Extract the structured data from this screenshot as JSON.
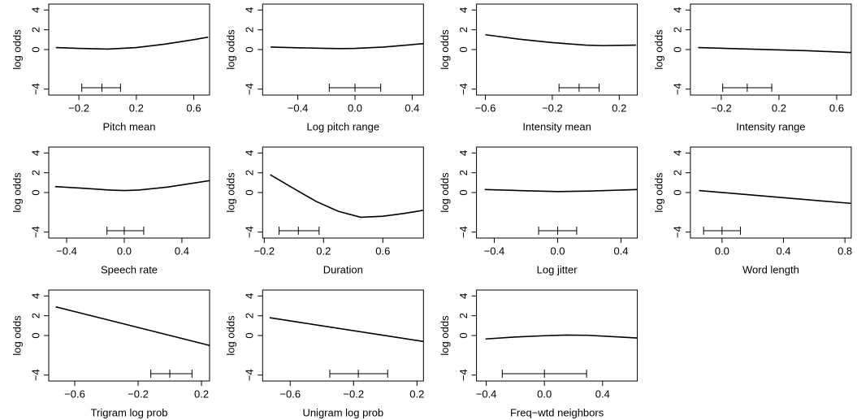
{
  "chart_data": [
    {
      "type": "line",
      "xlabel": "Pitch mean",
      "ylabel": "log odds",
      "color": "#000000",
      "x": [
        -0.36,
        -0.2,
        0,
        0.2,
        0.4,
        0.6,
        0.7
      ],
      "values": [
        0.2,
        0.12,
        0.05,
        0.2,
        0.55,
        1.0,
        1.25
      ],
      "range_marker": [
        -0.18,
        -0.04,
        0.09
      ],
      "xlim": [
        -0.41,
        0.71
      ],
      "ylim": [
        -4.6,
        4.6
      ],
      "xticks": [
        {
          "value": -0.2,
          "label": "−0.2"
        },
        0.2,
        0.6
      ],
      "yticks": [
        {
          "value": -4,
          "label": "−4"
        },
        0,
        2,
        4
      ]
    },
    {
      "type": "line",
      "xlabel": "Log pitch range",
      "ylabel": "log odds",
      "color": "#000000",
      "x": [
        -0.59,
        -0.4,
        -0.2,
        -0.1,
        0,
        0.2,
        0.48
      ],
      "values": [
        0.25,
        0.18,
        0.12,
        0.1,
        0.12,
        0.25,
        0.6
      ],
      "range_marker": [
        -0.18,
        0,
        0.18
      ],
      "xlim": [
        -0.646,
        0.479
      ],
      "ylim": [
        -4.6,
        4.6
      ],
      "xticks": [
        {
          "value": -0.4,
          "label": "−0.4"
        },
        {
          "value": 0,
          "label": "0.0"
        },
        0.4
      ],
      "yticks": [
        {
          "value": -4,
          "label": "−4"
        },
        0,
        2,
        4
      ]
    },
    {
      "type": "line",
      "xlabel": "Intensity mean",
      "ylabel": "log odds",
      "color": "#000000",
      "x": [
        -0.6,
        -0.4,
        -0.2,
        0,
        0.1,
        0.3
      ],
      "values": [
        1.5,
        1.05,
        0.7,
        0.45,
        0.4,
        0.45
      ],
      "range_marker": [
        -0.16,
        -0.04,
        0.08
      ],
      "xlim": [
        -0.653,
        0.308
      ],
      "ylim": [
        -4.6,
        4.6
      ],
      "xticks": [
        {
          "value": -0.6,
          "label": "−0.6"
        },
        {
          "value": -0.2,
          "label": "−0.2"
        },
        0.2
      ],
      "yticks": [
        {
          "value": -4,
          "label": "−4"
        },
        0,
        2,
        4
      ]
    },
    {
      "type": "line",
      "xlabel": "Intensity range",
      "ylabel": "log odds",
      "color": "#000000",
      "x": [
        -0.36,
        0,
        0.4,
        0.7
      ],
      "values": [
        0.2,
        0.05,
        -0.12,
        -0.3
      ],
      "range_marker": [
        -0.19,
        -0.02,
        0.15
      ],
      "xlim": [
        -0.414,
        0.701
      ],
      "ylim": [
        -4.6,
        4.6
      ],
      "xticks": [
        {
          "value": -0.2,
          "label": "−0.2"
        },
        0.2,
        0.6
      ],
      "yticks": [
        {
          "value": -4,
          "label": "−4"
        },
        0,
        2,
        4
      ]
    },
    {
      "type": "line",
      "xlabel": "Speech rate",
      "ylabel": "log odds",
      "color": "#000000",
      "x": [
        -0.48,
        -0.3,
        -0.1,
        0,
        0.1,
        0.3,
        0.59
      ],
      "values": [
        0.6,
        0.45,
        0.25,
        0.2,
        0.25,
        0.55,
        1.2
      ],
      "range_marker": [
        -0.12,
        0,
        0.135
      ],
      "xlim": [
        -0.524,
        0.592
      ],
      "ylim": [
        -4.6,
        4.6
      ],
      "xticks": [
        {
          "value": -0.4,
          "label": "−0.4"
        },
        {
          "value": 0,
          "label": "0.0"
        },
        0.4
      ],
      "yticks": [
        {
          "value": -4,
          "label": "−4"
        },
        0,
        2,
        4
      ]
    },
    {
      "type": "line",
      "xlabel": "Duration",
      "ylabel": "log odds",
      "color": "#000000",
      "x": [
        -0.16,
        0,
        0.15,
        0.3,
        0.45,
        0.6,
        0.75,
        0.87
      ],
      "values": [
        1.8,
        0.4,
        -0.9,
        -1.9,
        -2.5,
        -2.4,
        -2.1,
        -1.8
      ],
      "range_marker": [
        -0.1,
        0.03,
        0.17
      ],
      "xlim": [
        -0.211,
        0.874
      ],
      "ylim": [
        -4.6,
        4.6
      ],
      "xticks": [
        {
          "value": -0.2,
          "label": "−0.2"
        },
        0.2,
        0.6
      ],
      "yticks": [
        {
          "value": -4,
          "label": "−4"
        },
        0,
        2,
        4
      ]
    },
    {
      "type": "line",
      "xlabel": "Log jitter",
      "ylabel": "log odds",
      "color": "#000000",
      "x": [
        -0.46,
        -0.2,
        0,
        0.2,
        0.5
      ],
      "values": [
        0.3,
        0.18,
        0.1,
        0.15,
        0.3
      ],
      "range_marker": [
        -0.12,
        0,
        0.12
      ],
      "xlim": [
        -0.512,
        0.503
      ],
      "ylim": [
        -4.6,
        4.6
      ],
      "xticks": [
        {
          "value": -0.4,
          "label": "−0.4"
        },
        {
          "value": 0,
          "label": "0.0"
        },
        0.4
      ],
      "yticks": [
        {
          "value": -4,
          "label": "−4"
        },
        0,
        2,
        4
      ]
    },
    {
      "type": "line",
      "xlabel": "Word length",
      "ylabel": "log odds",
      "color": "#000000",
      "x": [
        -0.15,
        0.84
      ],
      "values": [
        0.2,
        -1.1
      ],
      "range_marker": [
        -0.12,
        0,
        0.12
      ],
      "xlim": [
        -0.206,
        0.841
      ],
      "ylim": [
        -4.6,
        4.6
      ],
      "xticks": [
        {
          "value": 0,
          "label": "0.0"
        },
        0.4,
        0.8
      ],
      "yticks": [
        {
          "value": -4,
          "label": "−4"
        },
        0,
        2,
        4
      ]
    },
    {
      "type": "line",
      "xlabel": "Trigram log prob",
      "ylabel": "log odds",
      "color": "#000000",
      "x": [
        -0.72,
        0.25
      ],
      "values": [
        2.9,
        -1.0
      ],
      "range_marker": [
        -0.12,
        0,
        0.14
      ],
      "xlim": [
        -0.764,
        0.251
      ],
      "ylim": [
        -4.6,
        4.6
      ],
      "xticks": [
        {
          "value": -0.6,
          "label": "−0.6"
        },
        {
          "value": -0.2,
          "label": "−0.2"
        },
        0.2
      ],
      "yticks": [
        {
          "value": -4,
          "label": "−4"
        },
        0,
        2,
        4
      ]
    },
    {
      "type": "line",
      "xlabel": "Unigram log prob",
      "ylabel": "log odds",
      "color": "#000000",
      "x": [
        -0.73,
        0.24
      ],
      "values": [
        1.8,
        -0.6
      ],
      "range_marker": [
        -0.35,
        -0.17,
        0.015
      ],
      "xlim": [
        -0.774,
        0.241
      ],
      "ylim": [
        -4.6,
        4.6
      ],
      "xticks": [
        {
          "value": -0.6,
          "label": "−0.6"
        },
        {
          "value": -0.2,
          "label": "−0.2"
        },
        0.2
      ],
      "yticks": [
        {
          "value": -4,
          "label": "−4"
        },
        0,
        2,
        4
      ]
    },
    {
      "type": "line",
      "xlabel": "Freq−wtd neighbors",
      "ylabel": "log odds",
      "color": "#000000",
      "x": [
        -0.405,
        -0.2,
        0,
        0.15,
        0.3,
        0.45,
        0.639
      ],
      "values": [
        -0.35,
        -0.15,
        -0.02,
        0.05,
        0.02,
        -0.1,
        -0.25
      ],
      "range_marker": [
        -0.29,
        0,
        0.29
      ],
      "xlim": [
        -0.467,
        0.639
      ],
      "ylim": [
        -4.6,
        4.6
      ],
      "xticks": [
        {
          "value": -0.4,
          "label": "−0.4"
        },
        {
          "value": 0,
          "label": "0.0"
        },
        0.4
      ],
      "yticks": [
        {
          "value": -4,
          "label": "−4"
        },
        0,
        2,
        4
      ]
    }
  ]
}
